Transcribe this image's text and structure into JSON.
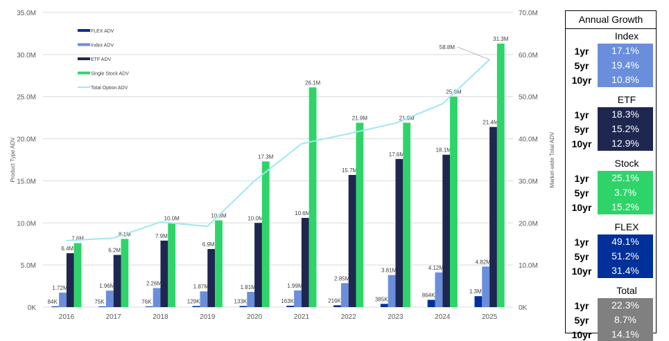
{
  "chart_data": {
    "type": "bar",
    "categories": [
      "2016",
      "2017",
      "2018",
      "2019",
      "2020",
      "2021",
      "2022",
      "2023",
      "2024",
      "2025"
    ],
    "ylabel": "Product Type ADV",
    "y2label": "Market-wide Total ADV",
    "ylim": [
      0,
      35
    ],
    "y2lim": [
      0,
      70
    ],
    "yticks": [
      "0K",
      "5.0M",
      "10.0M",
      "15.0M",
      "20.0M",
      "25.0M",
      "30.0M",
      "35.0M"
    ],
    "y2ticks": [
      "0K",
      "10.0M",
      "20.0M",
      "30.0M",
      "40.0M",
      "50.0M",
      "60.0M",
      "70.0M"
    ],
    "grid": true,
    "legend_position": "top-left",
    "series": [
      {
        "name": "FLEX ADV",
        "type": "bar",
        "color": "#00309a",
        "values": [
          0.084,
          0.075,
          0.076,
          0.129,
          0.133,
          0.163,
          0.216,
          0.385,
          0.864,
          1.3
        ],
        "labels": [
          "84K",
          "75K",
          "76K",
          "129K",
          "133K",
          "163K",
          "216K",
          "385K",
          "864K",
          "1.3M"
        ]
      },
      {
        "name": "Index ADV",
        "type": "bar",
        "color": "#6a8edb",
        "values": [
          1.72,
          1.96,
          2.26,
          1.87,
          1.81,
          1.99,
          2.85,
          3.81,
          4.12,
          4.82
        ],
        "labels": [
          "1.72M",
          "1.96M",
          "2.26M",
          "1.87M",
          "1.81M",
          "1.99M",
          "2.85M",
          "3.81M",
          "4.12M",
          "4.82M"
        ]
      },
      {
        "name": "ETF ADV",
        "type": "bar",
        "color": "#1e2750",
        "values": [
          6.4,
          6.2,
          7.9,
          6.9,
          10.0,
          10.6,
          15.7,
          17.6,
          18.1,
          21.4
        ],
        "labels": [
          "6.4M",
          "6.2M",
          "7.9M",
          "6.9M",
          "10.0M",
          "10.6M",
          "15.7M",
          "17.6M",
          "18.1M",
          "21.4M"
        ]
      },
      {
        "name": "Single Stock ADV",
        "type": "bar",
        "color": "#2ed46a",
        "values": [
          7.6,
          8.1,
          10.0,
          10.3,
          17.3,
          26.1,
          21.9,
          21.9,
          25.0,
          31.3
        ],
        "labels": [
          "7.6M",
          "8.1M",
          "10.0M",
          "10.3M",
          "17.3M",
          "26.1M",
          "21.9M",
          "21.9M",
          "25.0M",
          "31.3M"
        ]
      },
      {
        "name": "Total Option ADV",
        "type": "line",
        "axis": "right",
        "color": "#9ee8f0",
        "values": [
          15.8,
          16.4,
          20.2,
          19.2,
          30.0,
          38.8,
          41.2,
          43.7,
          48.3,
          58.8
        ],
        "annotation": "58.8M"
      }
    ]
  },
  "growth": {
    "title": "Annual Growth",
    "sections": [
      {
        "name": "Index",
        "color": "#6a8edb",
        "rows": [
          {
            "label": "1yr",
            "value": "17.1%"
          },
          {
            "label": "5yr",
            "value": "19.4%"
          },
          {
            "label": "10yr",
            "value": "10.8%"
          }
        ]
      },
      {
        "name": "ETF",
        "color": "#1e2750",
        "rows": [
          {
            "label": "1yr",
            "value": "18.3%"
          },
          {
            "label": "5yr",
            "value": "15.2%"
          },
          {
            "label": "10yr",
            "value": "12.9%"
          }
        ]
      },
      {
        "name": "Stock",
        "color": "#2ed46a",
        "rows": [
          {
            "label": "1yr",
            "value": "25.1%"
          },
          {
            "label": "5yr",
            "value": "3.7%"
          },
          {
            "label": "10yr",
            "value": "15.2%"
          }
        ]
      },
      {
        "name": "FLEX",
        "color": "#00309a",
        "rows": [
          {
            "label": "1yr",
            "value": "49.1%"
          },
          {
            "label": "5yr",
            "value": "51.2%"
          },
          {
            "label": "10yr",
            "value": "31.4%"
          }
        ]
      },
      {
        "name": "Total",
        "color": "#808080",
        "rows": [
          {
            "label": "1yr",
            "value": "22.3%"
          },
          {
            "label": "5yr",
            "value": "8.7%"
          },
          {
            "label": "10yr",
            "value": "14.1%"
          }
        ]
      }
    ]
  }
}
